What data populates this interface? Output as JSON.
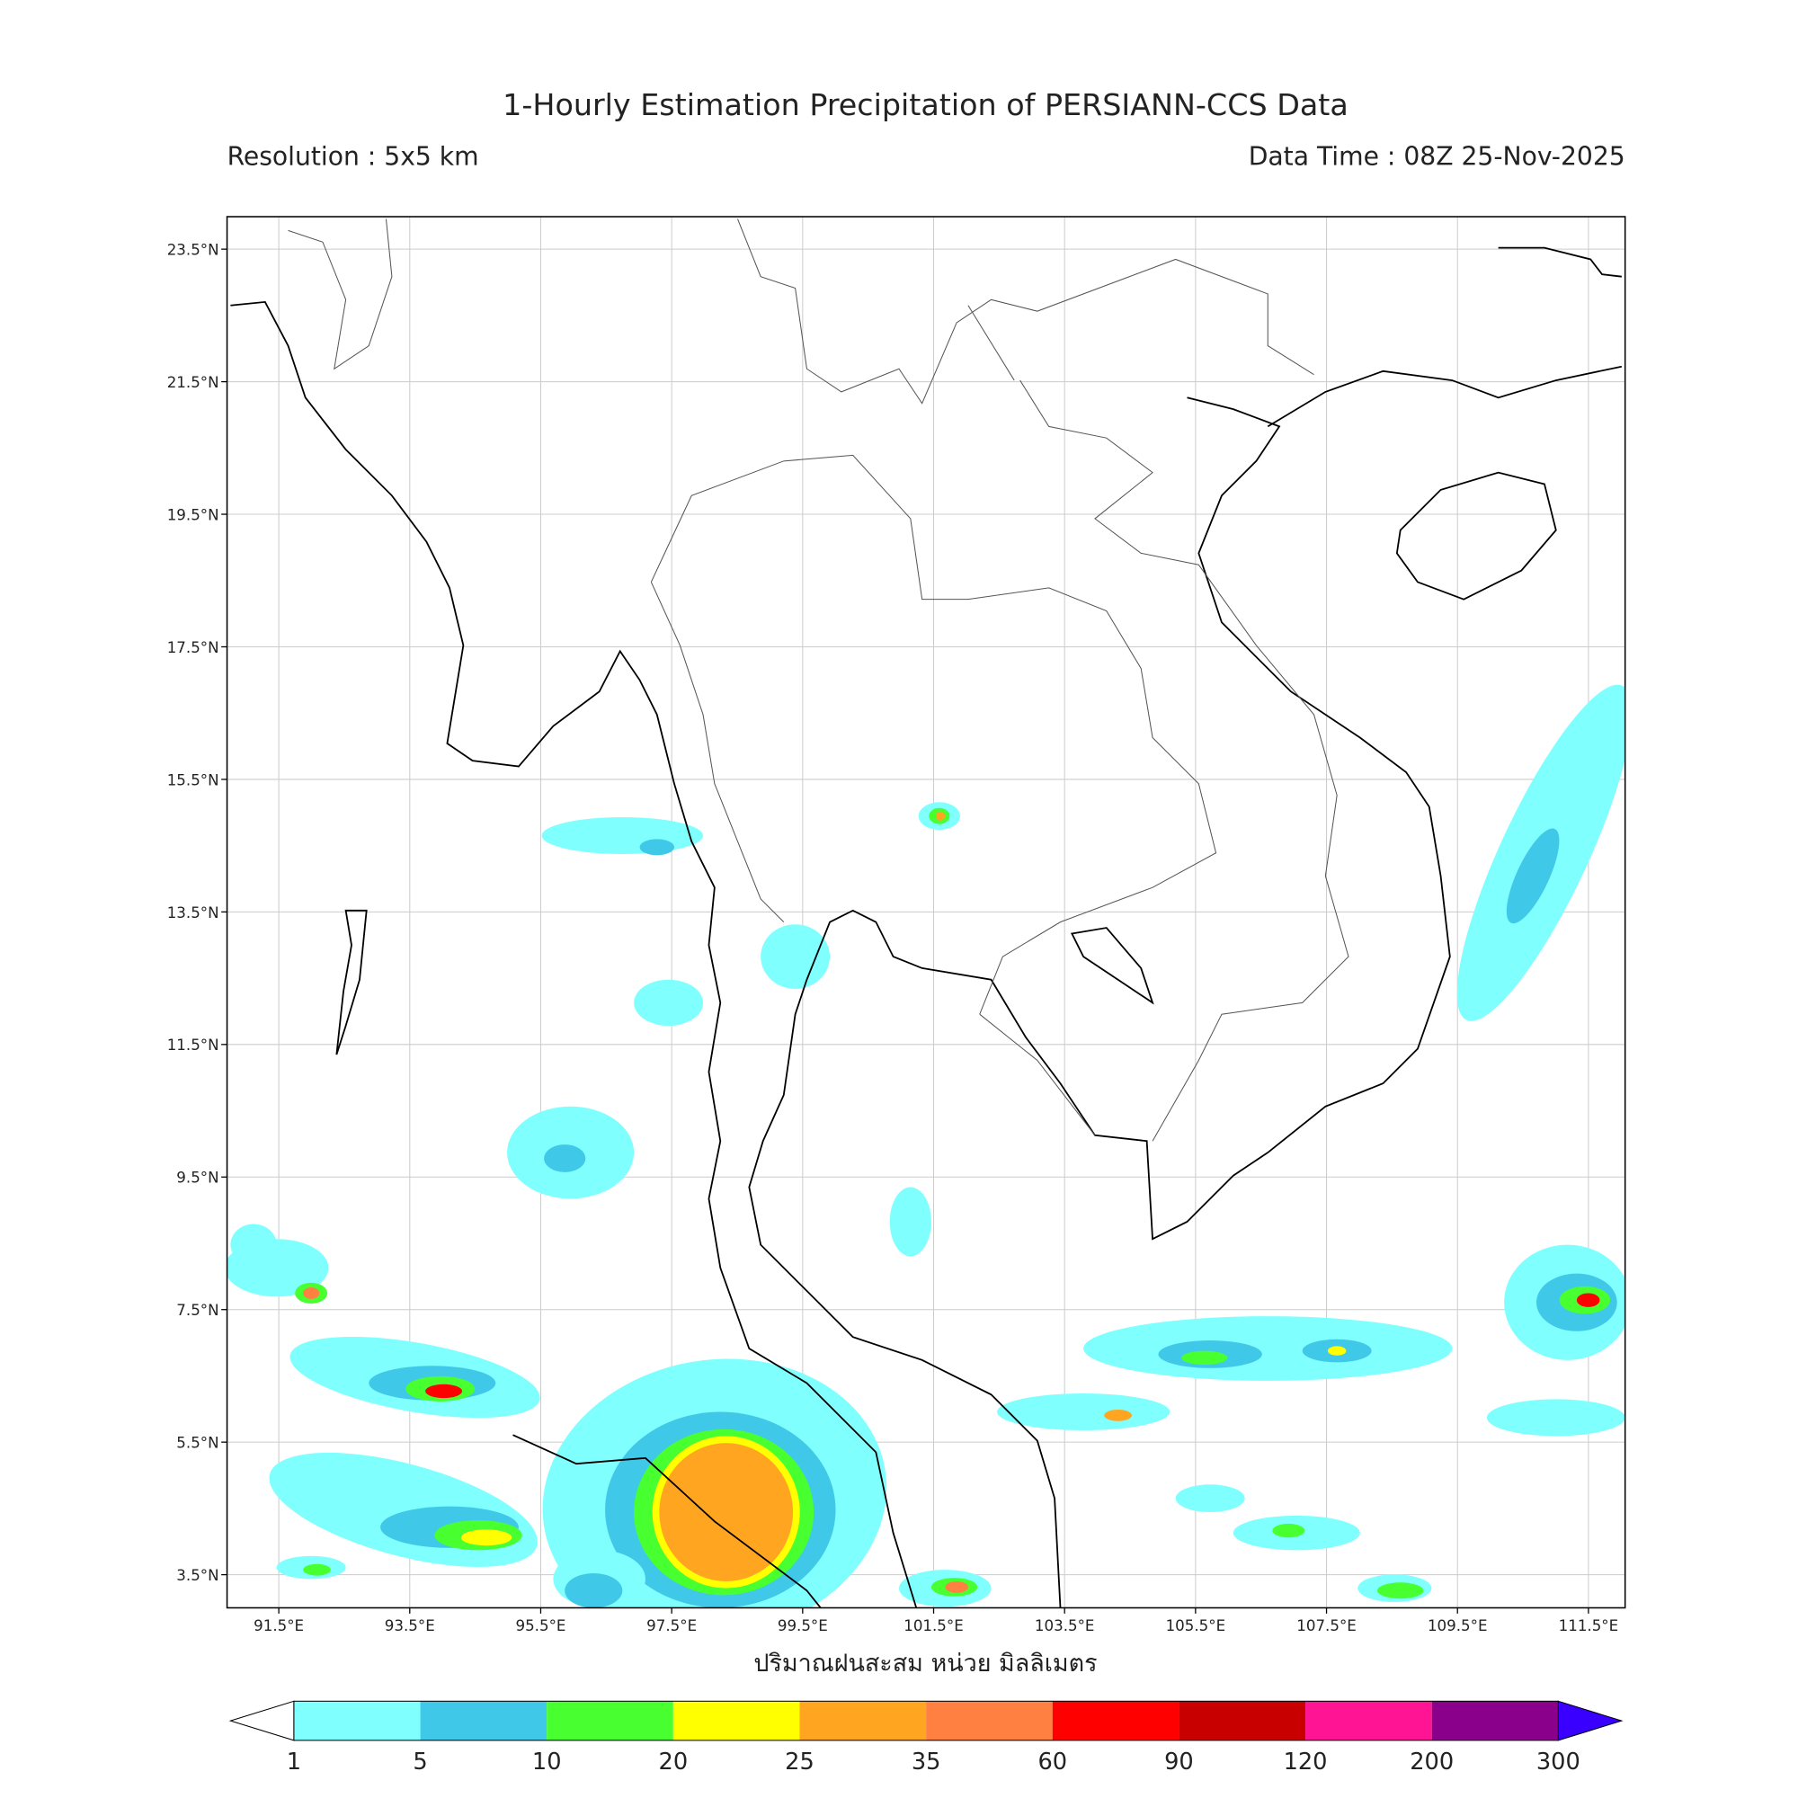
{
  "header": {
    "title": "1-Hourly Estimation Precipitation of PERSIANN-CCS Data",
    "resolution": "Resolution : 5x5 km",
    "data_time": "Data Time : 08Z 25-Nov-2025"
  },
  "map": {
    "lonlim": [
      90.71,
      112.06
    ],
    "latlim": [
      3.0,
      23.99
    ],
    "lat_ticks": [
      {
        "value": 23.5,
        "label": "23.5°N"
      },
      {
        "value": 21.5,
        "label": "21.5°N"
      },
      {
        "value": 19.5,
        "label": "19.5°N"
      },
      {
        "value": 17.5,
        "label": "17.5°N"
      },
      {
        "value": 15.5,
        "label": "15.5°N"
      },
      {
        "value": 13.5,
        "label": "13.5°N"
      },
      {
        "value": 11.5,
        "label": "11.5°N"
      },
      {
        "value": 9.5,
        "label": "9.5°N"
      },
      {
        "value": 7.5,
        "label": "7.5°N"
      },
      {
        "value": 5.5,
        "label": "5.5°N"
      },
      {
        "value": 3.5,
        "label": "3.5°N"
      }
    ],
    "lon_ticks": [
      {
        "value": 91.5,
        "label": "91.5°E"
      },
      {
        "value": 93.5,
        "label": "93.5°E"
      },
      {
        "value": 95.5,
        "label": "95.5°E"
      },
      {
        "value": 97.5,
        "label": "97.5°E"
      },
      {
        "value": 99.5,
        "label": "99.5°E"
      },
      {
        "value": 101.5,
        "label": "101.5°E"
      },
      {
        "value": 103.5,
        "label": "103.5°E"
      },
      {
        "value": 105.5,
        "label": "105.5°E"
      },
      {
        "value": 107.5,
        "label": "107.5°E"
      },
      {
        "value": 109.5,
        "label": "109.5°E"
      },
      {
        "value": 111.5,
        "label": "111.5°E"
      }
    ],
    "xlabel": "ปริมาณฝนสะสม หน่วย มิลลิเมตร"
  },
  "colorbar": {
    "levels": [
      1,
      5,
      10,
      20,
      25,
      35,
      60,
      90,
      120,
      200,
      300
    ],
    "colors": [
      "#80ffff",
      "#40c8e8",
      "#48ff30",
      "#ffff00",
      "#ffa520",
      "#ff8040",
      "#ff0000",
      "#c80000",
      "#ff1493",
      "#8b008b"
    ],
    "under_color": "#ffffff",
    "over_color": "#3a00ff"
  }
}
